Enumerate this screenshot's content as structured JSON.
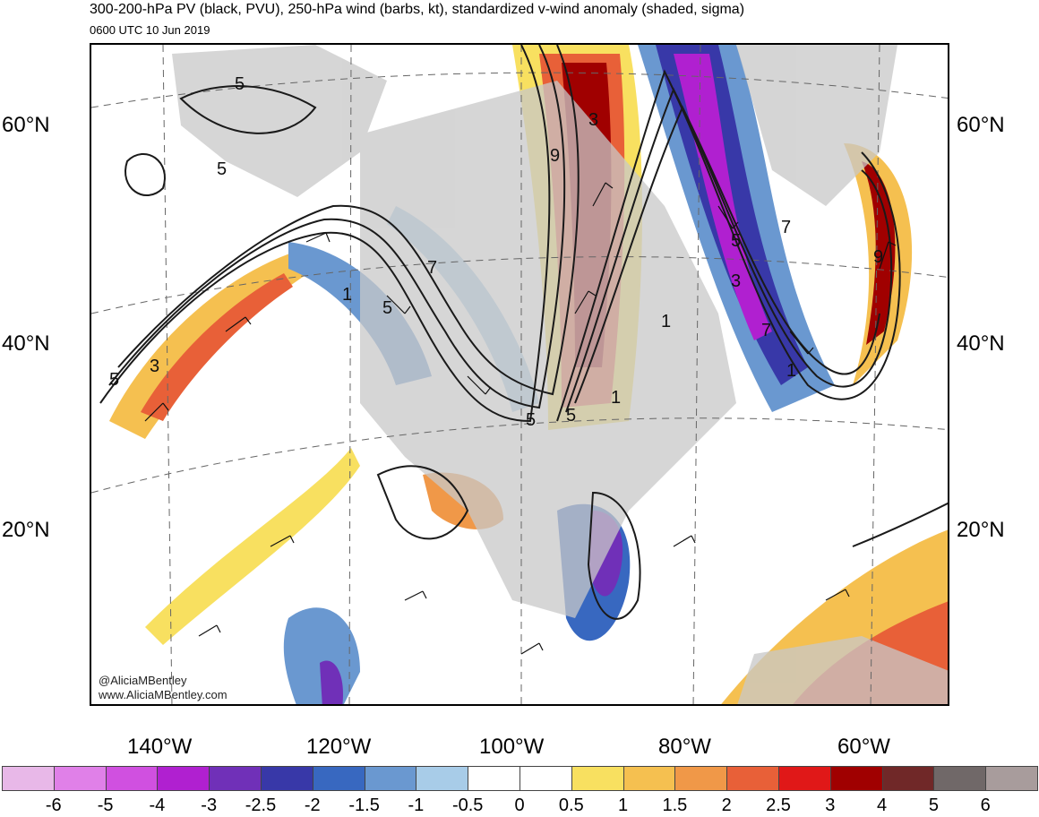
{
  "header": {
    "title": "300-200-hPa PV (black, PVU), 250-hPa wind (barbs, kt), standardized v-wind anomaly (shaded, sigma)",
    "valid_time": "0600 UTC 10 Jun 2019"
  },
  "map": {
    "lat_labels_left": [
      "60°N",
      "40°N",
      "20°N"
    ],
    "lat_labels_right": [
      "60°N",
      "40°N",
      "20°N"
    ],
    "lon_labels": [
      "140°W",
      "120°W",
      "100°W",
      "80°W",
      "60°W"
    ],
    "contour_labels": [
      "5",
      "5",
      "5",
      "7",
      "5",
      "1",
      "5",
      "3",
      "9",
      "7",
      "9",
      "1",
      "5",
      "3",
      "7",
      "1",
      "1",
      "3",
      "5"
    ],
    "colors": {
      "land": "#c8c8c8",
      "contour": "#1a1a1a",
      "barb": "#111111"
    }
  },
  "credits": {
    "twitter": "@AliciaMBentley",
    "website": "www.AliciaMBentley.com"
  },
  "colorbar": {
    "colors": [
      "#e8b8e8",
      "#e080e8",
      "#d050e0",
      "#b020d0",
      "#7030b8",
      "#3838a8",
      "#3868c0",
      "#6a98d0",
      "#a8cce8",
      "#ffffff",
      "#ffffff",
      "#f8e060",
      "#f5c050",
      "#f09848",
      "#e86038",
      "#e01818",
      "#a00000",
      "#702828",
      "#706868",
      "#a89c9c"
    ],
    "labels": [
      "-6",
      "-5",
      "-4",
      "-3",
      "-2.5",
      "-2",
      "-1.5",
      "-1",
      "-0.5",
      "0",
      "0.5",
      "1",
      "1.5",
      "2",
      "2.5",
      "3",
      "4",
      "5",
      "6"
    ]
  }
}
